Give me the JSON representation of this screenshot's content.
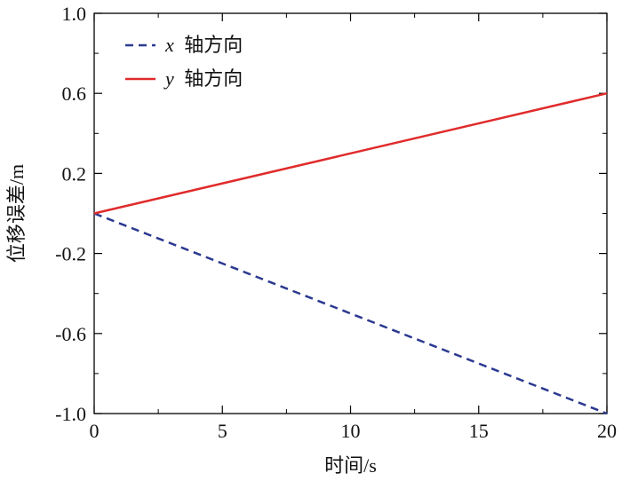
{
  "chart_data": {
    "type": "line",
    "xlabel": "时间/s",
    "ylabel": "位移误差/m",
    "xlim": [
      0,
      20
    ],
    "ylim": [
      -1.0,
      1.0
    ],
    "x_ticks": [
      0,
      5,
      10,
      15,
      20
    ],
    "x_tick_labels": [
      "0",
      "5",
      "10",
      "15",
      "20"
    ],
    "y_ticks": [
      -1.0,
      -0.6,
      -0.2,
      0.2,
      0.6,
      1.0
    ],
    "y_tick_labels": [
      "-1.0",
      "-0.6",
      "-0.2",
      "0.2",
      "0.6",
      "1.0"
    ],
    "grid": false,
    "legend_position": "top-left",
    "series": [
      {
        "name": "x 轴方向",
        "name_var": "x",
        "name_suffix": "轴方向",
        "color": "#2b3990",
        "style": "dashed",
        "x": [
          0,
          20
        ],
        "y": [
          0.0,
          -1.0
        ]
      },
      {
        "name": "y 轴方向",
        "name_var": "y",
        "name_suffix": "轴方向",
        "color": "#e02b2b",
        "style": "solid",
        "x": [
          0,
          20
        ],
        "y": [
          0.0,
          0.6
        ]
      }
    ]
  }
}
